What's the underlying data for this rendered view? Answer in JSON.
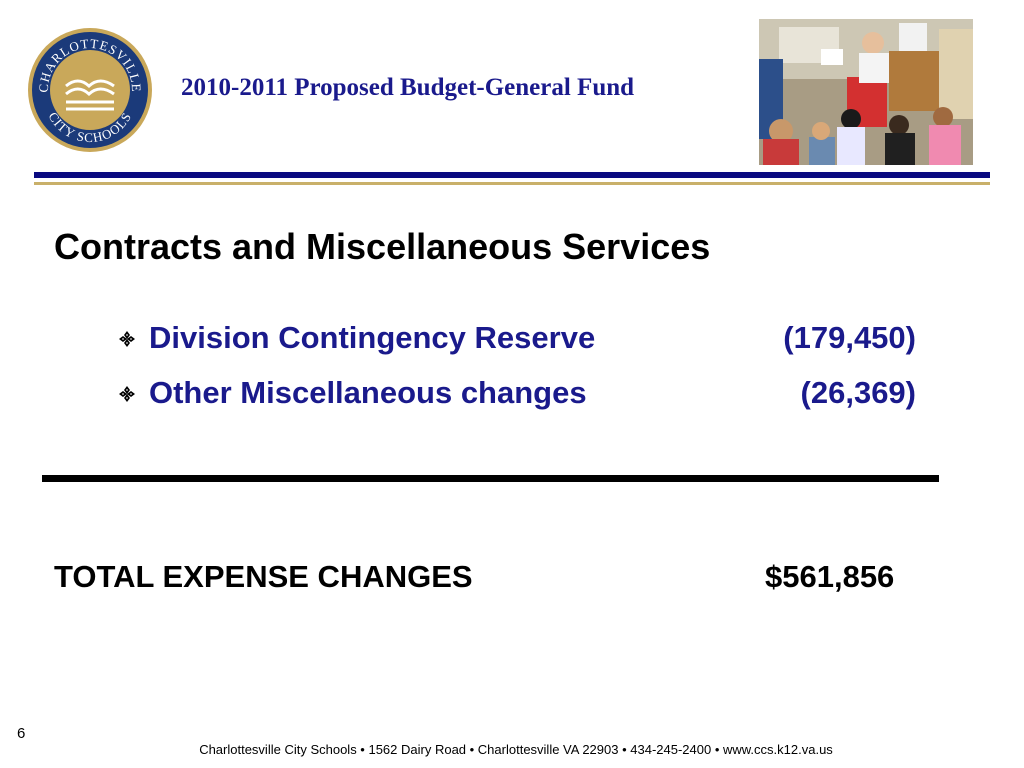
{
  "header": {
    "title": "2010-2011 Proposed Budget-General Fund",
    "logo": {
      "text_top": "CHARLOTTESVILLE",
      "text_bottom": "CITY SCHOOLS",
      "icon": "open-book-logo"
    },
    "photo": {
      "icon": "classroom-reading-photo"
    }
  },
  "colors": {
    "navy": "#0a0a80",
    "text_blue": "#1a1a8c",
    "gold": "#c9b06a",
    "black": "#000000"
  },
  "section": {
    "heading": "Contracts and Miscellaneous Services",
    "items": [
      {
        "label": "Division Contingency Reserve",
        "amount": "(179,450)",
        "bullet_icon": "diamond-bullet-icon"
      },
      {
        "label": "Other Miscellaneous changes",
        "amount": "(26,369)",
        "bullet_icon": "diamond-bullet-icon"
      }
    ]
  },
  "total": {
    "label": "TOTAL EXPENSE CHANGES",
    "amount": "$561,856"
  },
  "footer": {
    "page_number": "6",
    "address": "Charlottesville City Schools • 1562 Dairy Road • Charlottesville VA 22903 • 434-245-2400 • www.ccs.k12.va.us"
  }
}
